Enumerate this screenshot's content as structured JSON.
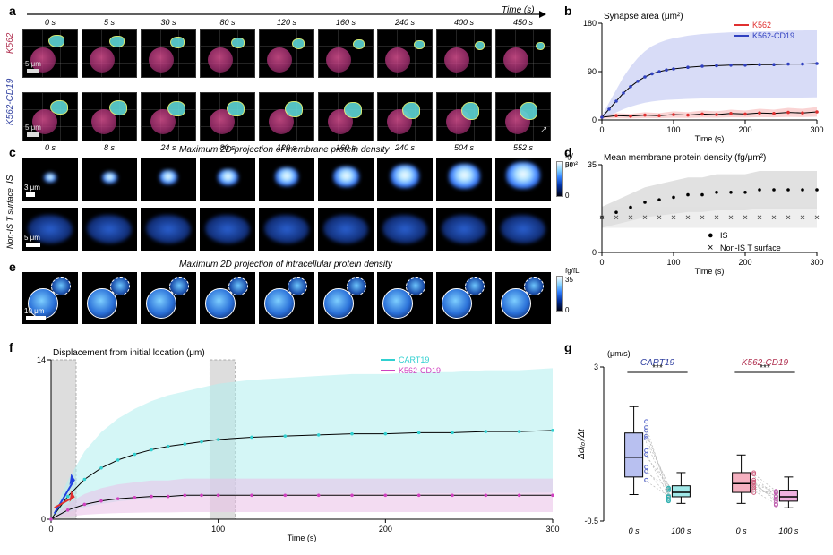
{
  "panel_a": {
    "label": "a",
    "row1_label": "K562",
    "row2_label": "K562-CD19",
    "time_axis_label": "Time (s)",
    "scale_label": "5 μm",
    "row1_times": [
      "0 s",
      "5 s",
      "30 s",
      "80 s",
      "120 s",
      "160 s",
      "240 s",
      "400 s",
      "450 s"
    ],
    "row2_times": [
      "0 s",
      "8 s",
      "24 s",
      "80 s",
      "120 s",
      "160 s",
      "240 s",
      "504 s",
      "552 s"
    ],
    "row1_label_color": "#b03050",
    "row2_label_color": "#3040a0",
    "frame_bg": "#000000",
    "target_color": "#c04080",
    "tcell_color": "#5fd6d6",
    "frame_w": 62,
    "frame_h": 55
  },
  "panel_b": {
    "label": "b",
    "title": "Synapse area (μm²)",
    "xlabel": "Time (s)",
    "xlim": [
      0,
      300
    ],
    "ylim": [
      0,
      180
    ],
    "xticks": [
      0,
      100,
      200,
      300
    ],
    "yticks": [
      0,
      90,
      180
    ],
    "series": [
      {
        "name": "K562",
        "color": "#e03030",
        "band_color": "#f5b0b0",
        "data": [
          [
            0,
            5
          ],
          [
            20,
            8
          ],
          [
            40,
            7
          ],
          [
            60,
            9
          ],
          [
            80,
            8
          ],
          [
            100,
            10
          ],
          [
            120,
            9
          ],
          [
            140,
            11
          ],
          [
            160,
            10
          ],
          [
            180,
            12
          ],
          [
            200,
            11
          ],
          [
            220,
            13
          ],
          [
            240,
            12
          ],
          [
            260,
            14
          ],
          [
            280,
            13
          ],
          [
            300,
            15
          ]
        ]
      },
      {
        "name": "K562-CD19",
        "color": "#3040c0",
        "band_color": "#b8c0f0",
        "data": [
          [
            0,
            5
          ],
          [
            10,
            20
          ],
          [
            20,
            35
          ],
          [
            30,
            50
          ],
          [
            40,
            62
          ],
          [
            50,
            72
          ],
          [
            60,
            80
          ],
          [
            70,
            86
          ],
          [
            80,
            90
          ],
          [
            90,
            93
          ],
          [
            100,
            95
          ],
          [
            120,
            98
          ],
          [
            140,
            100
          ],
          [
            160,
            101
          ],
          [
            180,
            102
          ],
          [
            200,
            102
          ],
          [
            220,
            103
          ],
          [
            240,
            103
          ],
          [
            260,
            104
          ],
          [
            280,
            104
          ],
          [
            300,
            105
          ]
        ]
      }
    ],
    "fit_color": "#000000",
    "title_fontsize": 10
  },
  "panel_c": {
    "label": "c",
    "title": "Maximum 2D projection of membrane protein density",
    "row1_label": "IS",
    "row2_label": "Non-IS T surface",
    "row1_scale": "3 μm",
    "row2_scale": "5 μm",
    "cbar_label_top": "fg/μm²",
    "cbar_max": 50,
    "cbar_min": 0,
    "n_frames": 9,
    "frame_w": 62,
    "row1_h": 48,
    "row2_h": 48
  },
  "panel_d": {
    "label": "d",
    "title": "Mean membrane protein density (fg/μm²)",
    "xlabel": "Time (s)",
    "xlim": [
      0,
      300
    ],
    "ylim": [
      0,
      35
    ],
    "xticks": [
      0,
      100,
      200,
      300
    ],
    "yticks": [
      0,
      35
    ],
    "series": [
      {
        "name": "IS",
        "marker": "●",
        "color": "#000000",
        "band_color": "#c8c8c8",
        "data": [
          [
            0,
            14
          ],
          [
            20,
            16
          ],
          [
            40,
            18
          ],
          [
            60,
            20
          ],
          [
            80,
            21
          ],
          [
            100,
            22
          ],
          [
            120,
            23
          ],
          [
            140,
            23
          ],
          [
            160,
            24
          ],
          [
            180,
            24
          ],
          [
            200,
            24
          ],
          [
            220,
            25
          ],
          [
            240,
            25
          ],
          [
            260,
            25
          ],
          [
            280,
            25
          ],
          [
            300,
            25
          ]
        ]
      },
      {
        "name": "Non-IS T surface",
        "marker": "×",
        "color": "#555555",
        "band_color": "#e0e0e0",
        "data": [
          [
            0,
            14
          ],
          [
            20,
            14
          ],
          [
            40,
            14
          ],
          [
            60,
            14
          ],
          [
            80,
            14
          ],
          [
            100,
            14
          ],
          [
            120,
            14
          ],
          [
            140,
            14
          ],
          [
            160,
            14
          ],
          [
            180,
            14
          ],
          [
            200,
            14
          ],
          [
            220,
            14
          ],
          [
            240,
            14
          ],
          [
            260,
            14
          ],
          [
            280,
            14
          ],
          [
            300,
            14
          ]
        ]
      }
    ]
  },
  "panel_e": {
    "label": "e",
    "title": "Maximum 2D projection of intracellular protein density",
    "scale": "10 μm",
    "cbar_label": "fg/fL",
    "cbar_max": 35,
    "cbar_min": 0,
    "n_frames": 9,
    "frame_w": 62,
    "frame_h": 58
  },
  "panel_f": {
    "label": "f",
    "title": "Displacement from initial location (μm)",
    "xlabel": "Time (s)",
    "xlim": [
      0,
      300
    ],
    "ylim": [
      0,
      14
    ],
    "xticks": [
      0,
      100,
      200,
      300
    ],
    "yticks": [
      0,
      14
    ],
    "shade_regions": [
      [
        0,
        15
      ],
      [
        95,
        110
      ]
    ],
    "shade_color": "#c7c7c7",
    "series": [
      {
        "name": "CART19",
        "color": "#30d0d0",
        "band_color": "#b0efef",
        "data": [
          [
            0,
            0
          ],
          [
            10,
            2
          ],
          [
            20,
            3.5
          ],
          [
            30,
            4.5
          ],
          [
            40,
            5.2
          ],
          [
            50,
            5.7
          ],
          [
            60,
            6.1
          ],
          [
            70,
            6.4
          ],
          [
            80,
            6.6
          ],
          [
            90,
            6.8
          ],
          [
            100,
            7
          ],
          [
            120,
            7.2
          ],
          [
            140,
            7.3
          ],
          [
            160,
            7.4
          ],
          [
            180,
            7.5
          ],
          [
            200,
            7.5
          ],
          [
            220,
            7.6
          ],
          [
            240,
            7.6
          ],
          [
            260,
            7.7
          ],
          [
            280,
            7.7
          ],
          [
            300,
            7.8
          ]
        ]
      },
      {
        "name": "K562-CD19",
        "color": "#d040c0",
        "band_color": "#eac0e8",
        "data": [
          [
            0,
            0
          ],
          [
            10,
            0.8
          ],
          [
            20,
            1.3
          ],
          [
            30,
            1.6
          ],
          [
            40,
            1.8
          ],
          [
            50,
            1.9
          ],
          [
            60,
            2.0
          ],
          [
            70,
            2.0
          ],
          [
            80,
            2.1
          ],
          [
            90,
            2.1
          ],
          [
            100,
            2.1
          ],
          [
            120,
            2.1
          ],
          [
            140,
            2.1
          ],
          [
            160,
            2.1
          ],
          [
            180,
            2.1
          ],
          [
            200,
            2.1
          ],
          [
            220,
            2.1
          ],
          [
            240,
            2.1
          ],
          [
            260,
            2.1
          ],
          [
            280,
            2.1
          ],
          [
            300,
            2.1
          ]
        ]
      }
    ],
    "fit_color": "#000000",
    "early_arrows": [
      {
        "color": "#2040e0"
      },
      {
        "color": "#e03030"
      }
    ]
  },
  "panel_g": {
    "label": "g",
    "ylabel": "Δd₍₀₎/Δt",
    "yunits": "(μm/s)",
    "ylim": [
      -0.5,
      3
    ],
    "yticks": [
      -0.5,
      3
    ],
    "sig_label": "***",
    "groups": [
      {
        "name": "CART19",
        "name_color": "#3040a0",
        "box_colors": [
          "#b8c0f0",
          "#a0e8e8"
        ],
        "x_labels": [
          "0 s",
          "100 s"
        ],
        "boxes": [
          {
            "q1": 0.5,
            "med": 0.95,
            "q3": 1.5,
            "whisk_lo": 0.1,
            "whisk_hi": 2.1
          },
          {
            "q1": 0.05,
            "med": 0.15,
            "q3": 0.3,
            "whisk_lo": -0.1,
            "whisk_hi": 0.6
          }
        ]
      },
      {
        "name": "K562-CD19",
        "name_color": "#b03050",
        "box_colors": [
          "#f5b0c0",
          "#f0b0e0"
        ],
        "x_labels": [
          "0 s",
          "100 s"
        ],
        "boxes": [
          {
            "q1": 0.15,
            "med": 0.35,
            "q3": 0.6,
            "whisk_lo": -0.1,
            "whisk_hi": 1.0
          },
          {
            "q1": -0.05,
            "med": 0.05,
            "q3": 0.2,
            "whisk_lo": -0.2,
            "whisk_hi": 0.5
          }
        ]
      }
    ],
    "pair_line_color": "#bbbbbb"
  }
}
